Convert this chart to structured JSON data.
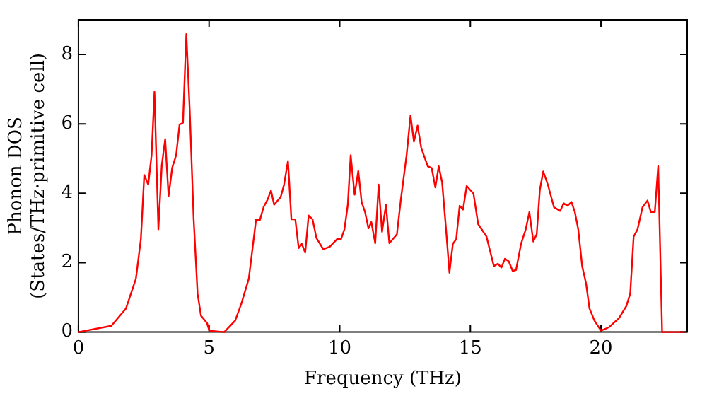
{
  "chart_data": {
    "type": "line",
    "xlabel": "Frequency (THz)",
    "ylabel": "Phonon DOS\n(States/THz·primitive cell)",
    "xlim": [
      0,
      23.3
    ],
    "ylim": [
      0,
      9
    ],
    "xticks": [
      0,
      5,
      10,
      15,
      20
    ],
    "yticks": [
      0,
      2,
      4,
      6,
      8
    ],
    "grid": false,
    "legend": false,
    "marker": "none",
    "line_style": "solid",
    "series": [
      {
        "color": "#ff0000",
        "x": [
          0,
          1.26,
          1.82,
          2.2,
          2.39,
          2.52,
          2.67,
          2.8,
          2.91,
          3.06,
          3.19,
          3.32,
          3.45,
          3.59,
          3.74,
          3.87,
          4.0,
          4.13,
          4.26,
          4.41,
          4.56,
          4.69,
          4.92,
          5.01,
          5.58,
          6.0,
          6.24,
          6.52,
          6.8,
          6.94,
          7.09,
          7.24,
          7.37,
          7.49,
          7.74,
          7.87,
          8.02,
          8.15,
          8.3,
          8.43,
          8.55,
          8.68,
          8.81,
          8.96,
          9.11,
          9.37,
          9.62,
          9.9,
          10.05,
          10.18,
          10.31,
          10.42,
          10.57,
          10.71,
          10.84,
          10.97,
          11.1,
          11.21,
          11.36,
          11.49,
          11.62,
          11.77,
          11.9,
          12.19,
          12.34,
          12.56,
          12.71,
          12.84,
          12.98,
          13.12,
          13.37,
          13.52,
          13.66,
          13.79,
          13.92,
          14.07,
          14.2,
          14.33,
          14.46,
          14.59,
          14.72,
          14.86,
          15.12,
          15.3,
          15.62,
          15.9,
          16.05,
          16.19,
          16.32,
          16.47,
          16.62,
          16.75,
          16.94,
          17.12,
          17.26,
          17.41,
          17.54,
          17.66,
          17.79,
          17.97,
          18.2,
          18.44,
          18.57,
          18.72,
          18.87,
          19.0,
          19.13,
          19.28,
          19.43,
          19.56,
          19.75,
          20.0,
          20.31,
          20.69,
          20.97,
          21.12,
          21.25,
          21.4,
          21.59,
          21.78,
          21.91,
          22.06,
          22.19,
          22.34,
          23.2
        ],
        "values": [
          0,
          0.18,
          0.68,
          1.54,
          2.68,
          4.53,
          4.25,
          5.1,
          6.92,
          2.96,
          4.81,
          5.56,
          3.92,
          4.74,
          5.1,
          5.98,
          6.03,
          8.59,
          6.38,
          3.25,
          1.11,
          0.47,
          0.26,
          0.04,
          0,
          0.33,
          0.83,
          1.54,
          3.25,
          3.22,
          3.61,
          3.82,
          4.08,
          3.67,
          3.89,
          4.25,
          4.93,
          3.25,
          3.25,
          2.42,
          2.54,
          2.29,
          3.36,
          3.25,
          2.71,
          2.39,
          2.46,
          2.68,
          2.68,
          2.96,
          3.67,
          5.1,
          3.96,
          4.64,
          3.74,
          3.46,
          2.99,
          3.17,
          2.56,
          4.25,
          2.89,
          3.67,
          2.56,
          2.82,
          3.82,
          5.1,
          6.24,
          5.49,
          5.95,
          5.31,
          4.78,
          4.73,
          4.17,
          4.78,
          4.31,
          2.96,
          1.71,
          2.54,
          2.68,
          3.64,
          3.53,
          4.21,
          3.99,
          3.11,
          2.75,
          1.9,
          1.97,
          1.86,
          2.11,
          2.04,
          1.76,
          1.79,
          2.54,
          2.96,
          3.46,
          2.61,
          2.82,
          4.1,
          4.63,
          4.24,
          3.6,
          3.49,
          3.71,
          3.64,
          3.75,
          3.46,
          2.96,
          1.9,
          1.4,
          0.68,
          0.33,
          0.04,
          0.14,
          0.4,
          0.75,
          1.11,
          2.75,
          2.96,
          3.6,
          3.79,
          3.46,
          3.46,
          4.78,
          0,
          0
        ]
      }
    ]
  }
}
